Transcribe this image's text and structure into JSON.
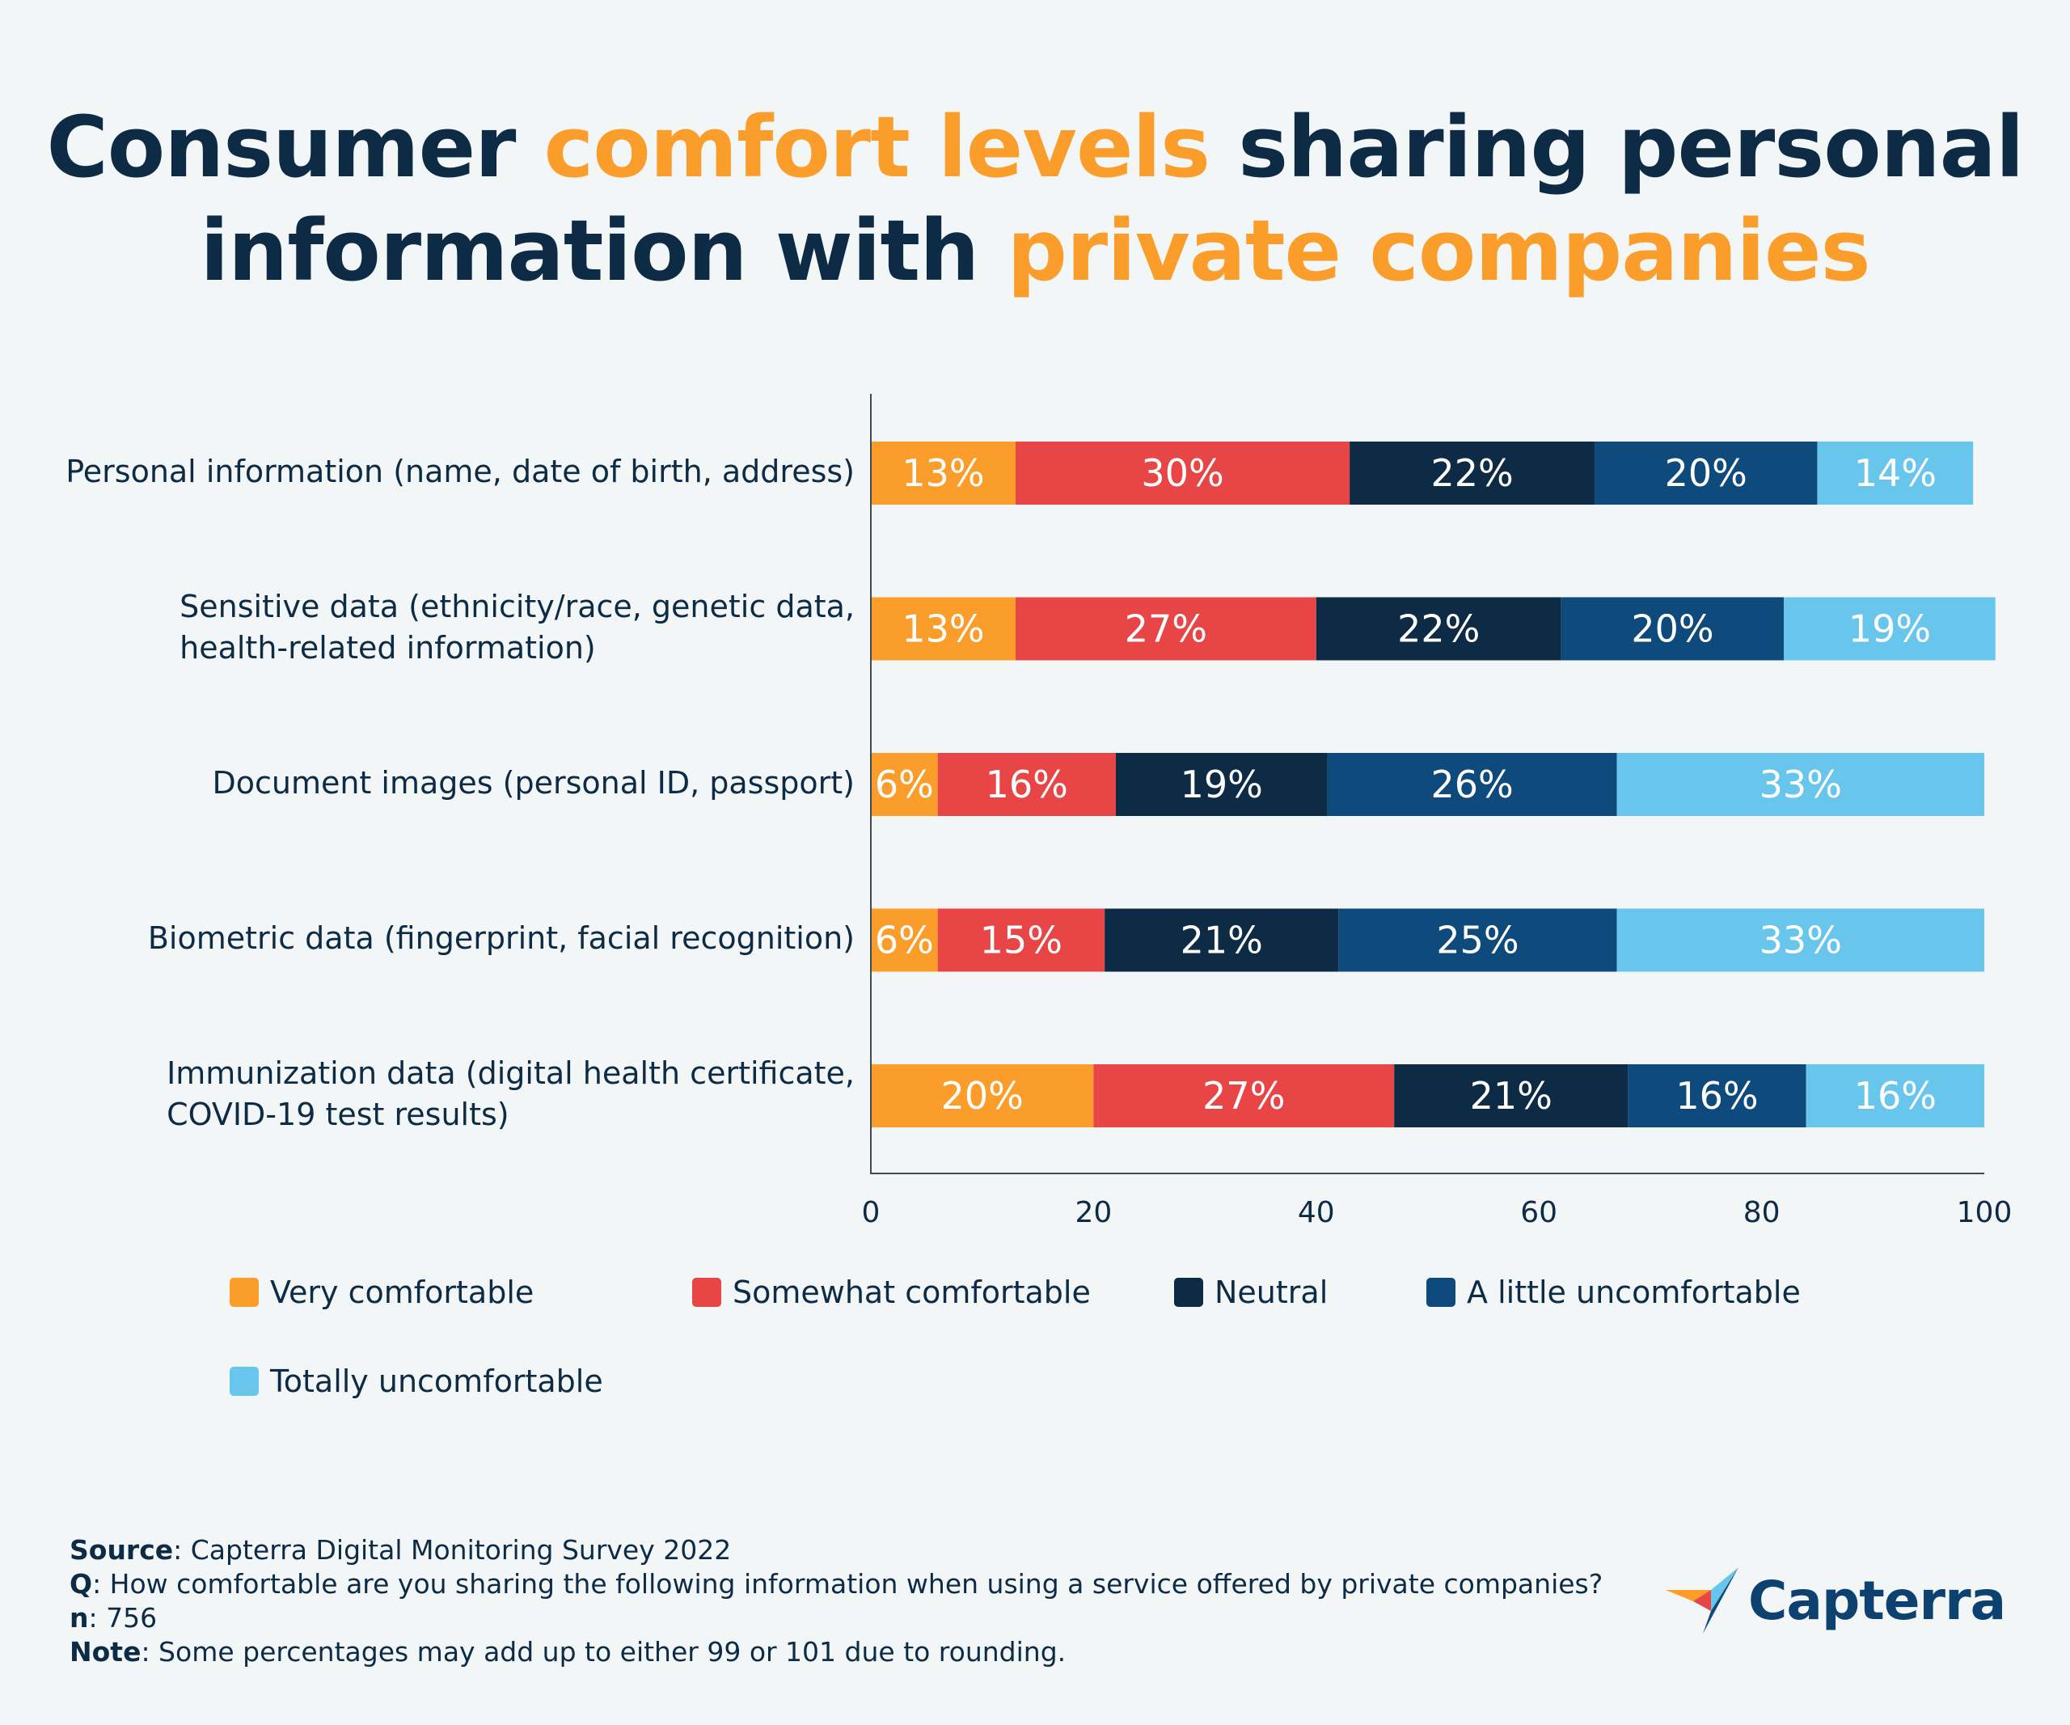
{
  "title": {
    "part1": "Consumer ",
    "accent1": "comfort levels",
    "part2": " sharing personal",
    "part3": "information with ",
    "accent2": "private companies"
  },
  "colors": {
    "background": "#f2f6f6",
    "title_dark": "#0d2b45",
    "accent": "#fa9d2b",
    "series": [
      "#fa9d2b",
      "#e84646",
      "#0d2b45",
      "#0e4a7c",
      "#68c6ec"
    ],
    "label_text_on_light": "#ffffff"
  },
  "chart_data": {
    "type": "bar",
    "orientation": "horizontal",
    "stacked": true,
    "title": "Consumer comfort levels sharing personal information with private companies",
    "categories": [
      "Personal information (name, date of birth, address)",
      "Sensitive data (ethnicity/race, genetic data, health-related information)",
      "Document images (personal ID, passport)",
      "Biometric data (fingerprint, facial recognition)",
      "Immunization data (digital health certificate, COVID-19 test results)"
    ],
    "category_lines": [
      [
        "Personal information (name, date of birth, address)"
      ],
      [
        "Sensitive data (ethnicity/race, genetic data,",
        "health-related information)"
      ],
      [
        "Document images (personal ID, passport)"
      ],
      [
        "Biometric data (fingerprint, facial recognition)"
      ],
      [
        "Immunization data (digital health certificate,",
        "COVID-19 test results)"
      ]
    ],
    "series": [
      {
        "name": "Very comfortable",
        "values": [
          13,
          13,
          6,
          6,
          20
        ]
      },
      {
        "name": "Somewhat comfortable",
        "values": [
          30,
          27,
          16,
          15,
          27
        ]
      },
      {
        "name": "Neutral",
        "values": [
          22,
          22,
          19,
          21,
          21
        ]
      },
      {
        "name": "A little uncomfortable",
        "values": [
          20,
          20,
          26,
          25,
          16
        ]
      },
      {
        "name": "Totally uncomfortable",
        "values": [
          14,
          19,
          33,
          33,
          16
        ]
      }
    ],
    "xlim": [
      0,
      100
    ],
    "xticks": [
      "0",
      "20",
      "40",
      "60",
      "80",
      "100"
    ],
    "xlabel": "",
    "ylabel": "",
    "grid": false,
    "legend_position": "bottom"
  },
  "footnotes": {
    "source_label": "Source",
    "source_text": ": Capterra Digital Monitoring Survey 2022",
    "q_label": "Q",
    "q_text": ": How comfortable are you sharing the following information when using a service offered by private companies?",
    "n_label": "n",
    "n_text": ": 756",
    "note_label": "Note",
    "note_text": ": Some percentages may add up to either 99 or 101 due to rounding."
  },
  "logo": {
    "text": "Capterra",
    "icon": "capterra-arrow-icon"
  }
}
